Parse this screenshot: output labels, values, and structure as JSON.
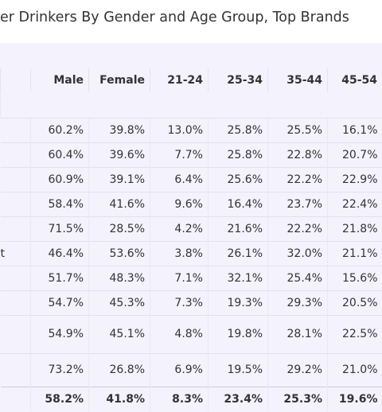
{
  "chart_data": {
    "type": "table",
    "title": "er Drinkers By Gender and Age Group, Top Brands",
    "columns": [
      "Male",
      "Female",
      "21-24",
      "25-34",
      "35-44",
      "45-54"
    ],
    "rows": [
      {
        "brand": "",
        "values": [
          "60.2%",
          "39.8%",
          "13.0%",
          "25.8%",
          "25.5%",
          "16.1%"
        ]
      },
      {
        "brand": "",
        "values": [
          "60.4%",
          "39.6%",
          "7.7%",
          "25.8%",
          "22.8%",
          "20.7%"
        ]
      },
      {
        "brand": "",
        "values": [
          "60.9%",
          "39.1%",
          "6.4%",
          "25.6%",
          "22.2%",
          "22.9%"
        ]
      },
      {
        "brand": "",
        "values": [
          "58.4%",
          "41.6%",
          "9.6%",
          "16.4%",
          "23.7%",
          "22.4%"
        ]
      },
      {
        "brand": "",
        "values": [
          "71.5%",
          "28.5%",
          "4.2%",
          "21.6%",
          "22.2%",
          "21.8%"
        ]
      },
      {
        "brand": "t",
        "values": [
          "46.4%",
          "53.6%",
          "3.8%",
          "26.1%",
          "32.0%",
          "21.1%"
        ]
      },
      {
        "brand": "",
        "values": [
          "51.7%",
          "48.3%",
          "7.1%",
          "32.1%",
          "25.4%",
          "15.6%"
        ]
      },
      {
        "brand": "",
        "values": [
          "54.7%",
          "45.3%",
          "7.3%",
          "19.3%",
          "29.3%",
          "20.5%"
        ]
      },
      {
        "brand": "",
        "values": [
          "54.9%",
          "45.1%",
          "4.8%",
          "19.8%",
          "28.1%",
          "22.5%"
        ]
      },
      {
        "brand": "",
        "values": [
          "73.2%",
          "26.8%",
          "6.9%",
          "19.5%",
          "29.2%",
          "21.0%"
        ]
      }
    ],
    "total": [
      "58.2%",
      "41.8%",
      "8.3%",
      "23.4%",
      "25.3%",
      "19.6%"
    ]
  }
}
